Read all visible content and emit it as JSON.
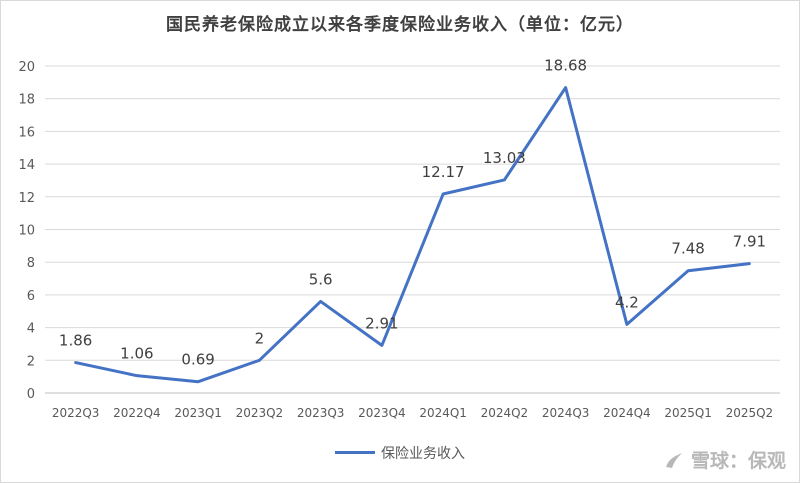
{
  "chart_data": {
    "type": "line",
    "title": "国民养老保险成立以来各季度保险业务收入（单位：亿元）",
    "categories": [
      "2022Q3",
      "2022Q4",
      "2023Q1",
      "2023Q2",
      "2023Q3",
      "2023Q4",
      "2024Q1",
      "2024Q2",
      "2024Q3",
      "2024Q4",
      "2025Q1",
      "2025Q2"
    ],
    "series": [
      {
        "name": "保险业务收入",
        "values": [
          1.86,
          1.06,
          0.69,
          2,
          5.6,
          2.91,
          12.17,
          13.03,
          18.68,
          4.2,
          7.48,
          7.91
        ],
        "color": "#4472C4"
      }
    ],
    "data_labels": [
      "1.86",
      "1.06",
      "0.69",
      "2",
      "5.6",
      "2.91",
      "12.17",
      "13.03",
      "18.68",
      "4.2",
      "7.48",
      "7.91"
    ],
    "yticks": [
      "0",
      "2",
      "4",
      "6",
      "8",
      "10",
      "12",
      "14",
      "16",
      "18",
      "20"
    ],
    "ylim": [
      0,
      20
    ],
    "grid": true,
    "legend_position": "bottom"
  },
  "watermark": {
    "text": "雪球：保观",
    "icon": "snowball-logo-icon"
  }
}
